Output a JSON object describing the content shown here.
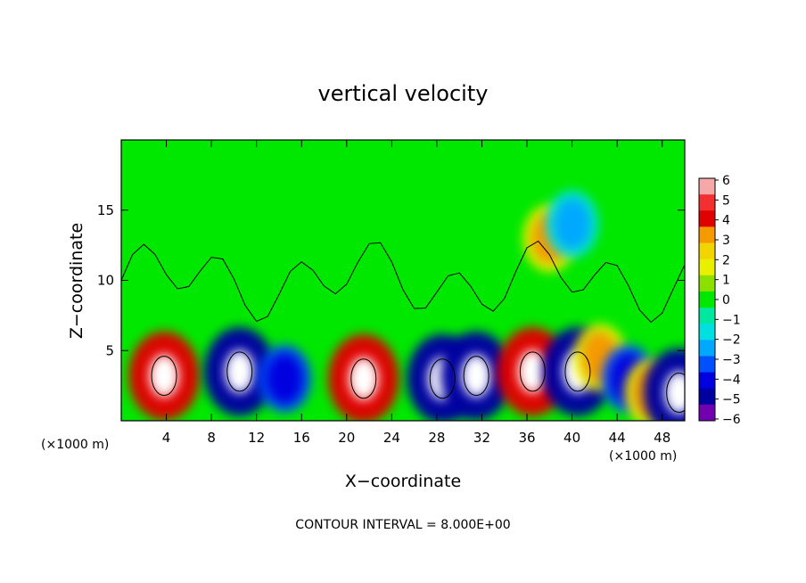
{
  "chart_data": {
    "type": "heatmap",
    "title": "vertical velocity",
    "xlabel": "X−coordinate",
    "ylabel": "Z−coordinate",
    "x_unit_left": "(×1000 m)",
    "x_unit_right": "(×1000 m)",
    "xlim": [
      0,
      50
    ],
    "ylim": [
      0,
      20
    ],
    "x_ticks": [
      4,
      8,
      12,
      16,
      20,
      24,
      28,
      32,
      36,
      40,
      44,
      48
    ],
    "y_ticks": [
      5,
      10,
      15
    ],
    "colorbar": {
      "levels": [
        6,
        5,
        4,
        3,
        2,
        1,
        0,
        -1,
        -2,
        -3,
        -4,
        -5,
        -6
      ],
      "labels": [
        "6",
        "5",
        "4",
        "3",
        "2",
        "1",
        "0",
        "−1",
        "−2",
        "−3",
        "−4",
        "−5",
        "−6"
      ],
      "colors": [
        "#f5a8a8",
        "#f23030",
        "#e00000",
        "#f59a00",
        "#f2d400",
        "#e8f000",
        "#8ce000",
        "#00e800",
        "#00e8a0",
        "#00e0e0",
        "#00a8ff",
        "#0050ff",
        "#0000e0",
        "#0000a0",
        "#7000b0"
      ]
    },
    "features": [
      {
        "x": 3.8,
        "z": 3.2,
        "w": 8
      },
      {
        "x": 10.5,
        "z": 3.5,
        "w": -7
      },
      {
        "x": 14.5,
        "z": 3.0,
        "w": -4
      },
      {
        "x": 21.5,
        "z": 3.0,
        "w": 8
      },
      {
        "x": 28.5,
        "z": 3.0,
        "w": -6
      },
      {
        "x": 31.5,
        "z": 3.2,
        "w": -6
      },
      {
        "x": 36.5,
        "z": 3.5,
        "w": 8
      },
      {
        "x": 40.5,
        "z": 3.5,
        "w": -6
      },
      {
        "x": 42.5,
        "z": 4.5,
        "w": 3
      },
      {
        "x": 45.0,
        "z": 3.0,
        "w": -5
      },
      {
        "x": 47.0,
        "z": 2.0,
        "w": 4
      },
      {
        "x": 49.5,
        "z": 2.0,
        "w": -6
      },
      {
        "x": 38.0,
        "z": 13.0,
        "w": 3
      },
      {
        "x": 40.0,
        "z": 14.0,
        "w": -2
      }
    ],
    "annotation": "CONTOUR INTERVAL = 8.000E+00"
  }
}
